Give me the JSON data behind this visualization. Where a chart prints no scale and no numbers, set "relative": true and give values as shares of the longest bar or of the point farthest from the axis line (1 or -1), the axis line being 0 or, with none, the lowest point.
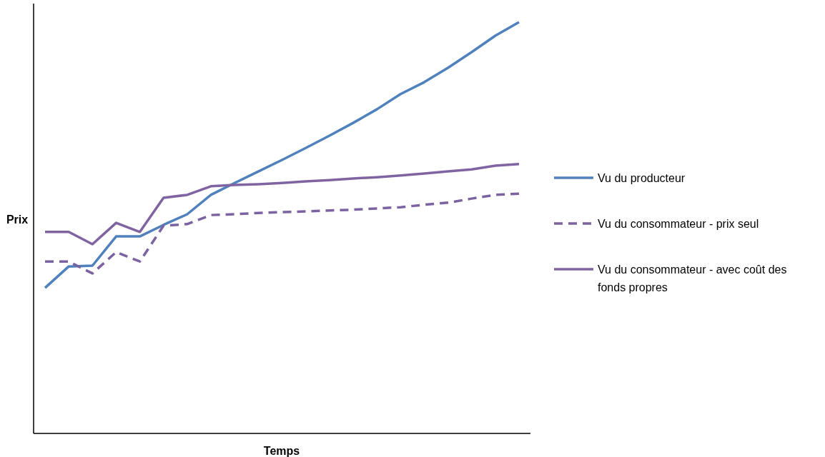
{
  "chart_data": {
    "type": "line",
    "relative": true,
    "xlabel": "Temps",
    "ylabel": "Prix",
    "legend": "right",
    "categories": [
      null,
      null,
      null,
      null,
      null,
      null,
      null,
      null,
      null,
      null,
      null,
      null,
      null,
      null,
      null,
      null,
      null,
      null,
      null,
      null,
      null
    ],
    "series": [
      {
        "name": "Vu du producteur",
        "color": "#4f81bd",
        "line_style": "solid",
        "values": [
          0.354,
          0.406,
          0.408,
          0.479,
          0.479,
          0.507,
          0.533,
          0.58,
          0.609,
          0.637,
          0.665,
          0.694,
          0.724,
          0.755,
          0.788,
          0.825,
          0.854,
          0.889,
          0.927,
          0.967,
          1
        ]
      },
      {
        "name": "Vu du consommateur - prix seul",
        "color": "#7b62a0",
        "line_style": "dashed",
        "values": [
          0.418,
          0.418,
          0.389,
          0.441,
          0.418,
          0.505,
          0.509,
          0.531,
          0.533,
          0.536,
          0.538,
          0.54,
          0.542,
          0.544,
          0.547,
          0.55,
          0.556,
          0.561,
          0.571,
          0.58,
          0.583
        ]
      },
      {
        "name": "Vu du consommateur - avec coût des fonds propres",
        "color": "#8064a2",
        "line_style": "solid",
        "values": [
          0.49,
          0.49,
          0.46,
          0.512,
          0.49,
          0.573,
          0.58,
          0.601,
          0.604,
          0.606,
          0.609,
          0.613,
          0.616,
          0.62,
          0.623,
          0.627,
          0.632,
          0.637,
          0.642,
          0.651,
          0.655
        ]
      }
    ]
  }
}
